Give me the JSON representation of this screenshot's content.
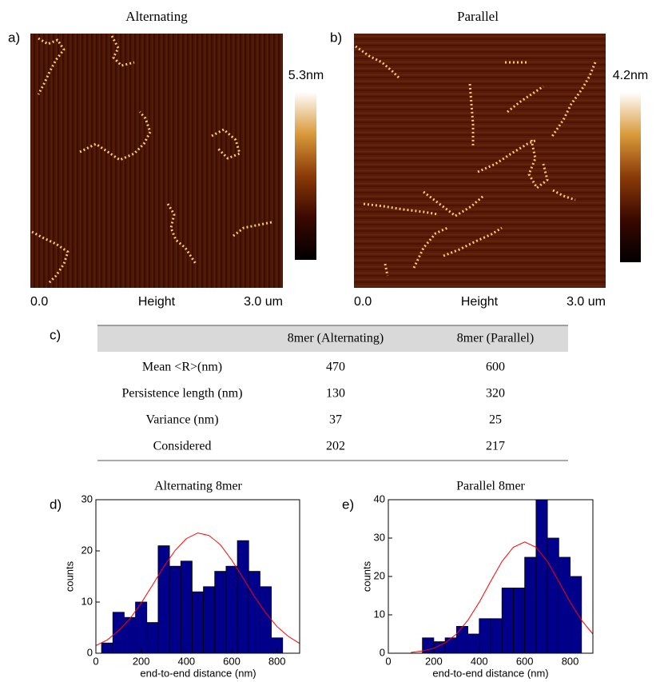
{
  "panels": {
    "a": {
      "label": "a)",
      "title": "Alternating",
      "scale_label": "5.3nm",
      "x_start": "0.0",
      "x_mid": "Height",
      "x_end": "3.0 um"
    },
    "b": {
      "label": "b)",
      "title": "Parallel",
      "scale_label": "4.2nm",
      "x_start": "0.0",
      "x_mid": "Height",
      "x_end": "3.0 um"
    },
    "c": {
      "label": "c)"
    },
    "d": {
      "label": "d)"
    },
    "e": {
      "label": "e)"
    }
  },
  "table": {
    "headers": [
      "8mer (Alternating)",
      "8mer (Parallel)"
    ],
    "rows": [
      [
        "Mean <R>(nm)",
        470,
        600
      ],
      [
        "Persistence length (nm)",
        130,
        320
      ],
      [
        "Variance (nm)",
        37,
        25
      ],
      [
        "Considered",
        202,
        217
      ]
    ]
  },
  "chart_data": [
    {
      "type": "histogram",
      "title": "Alternating 8mer",
      "xlabel": "end-to-end distance (nm)",
      "ylabel": "counts",
      "bins": [
        25,
        75,
        125,
        175,
        225,
        275,
        325,
        375,
        425,
        475,
        525,
        575,
        625,
        675,
        725,
        775,
        825
      ],
      "counts": [
        2,
        8,
        7,
        10,
        6,
        21,
        17,
        18,
        12,
        13,
        16,
        17,
        22,
        16,
        13,
        3
      ],
      "color": "#00008b",
      "xlim": [
        0,
        900
      ],
      "xticks": [
        0,
        200,
        400,
        600,
        800
      ],
      "ylim": [
        0,
        30
      ],
      "yticks": [
        0,
        10,
        20,
        30
      ],
      "fit": {
        "color": "#ff0000",
        "x": [
          0,
          50,
          100,
          150,
          200,
          250,
          300,
          350,
          400,
          450,
          500,
          550,
          600,
          650,
          700,
          750,
          800,
          850,
          900
        ],
        "values": [
          1.5,
          2.6,
          4.4,
          6.7,
          9.8,
          13.3,
          16.9,
          20.1,
          22.4,
          23.5,
          23.0,
          21.2,
          18.2,
          14.7,
          11.1,
          7.9,
          5.2,
          3.3,
          1.9
        ]
      }
    },
    {
      "type": "histogram",
      "title": "Parallel 8mer",
      "xlabel": "end-to-end distance (nm)",
      "ylabel": "counts",
      "bins": [
        150,
        200,
        250,
        300,
        350,
        400,
        450,
        500,
        550,
        600,
        650,
        700,
        750,
        800,
        850
      ],
      "counts": [
        4,
        3,
        4,
        7,
        5,
        9,
        9,
        17,
        17,
        25,
        40,
        30,
        25,
        20
      ],
      "color": "#00008b",
      "xlim": [
        0,
        900
      ],
      "xticks": [
        0,
        200,
        400,
        600,
        800
      ],
      "ylim": [
        0,
        40
      ],
      "yticks": [
        0,
        10,
        20,
        30,
        40
      ],
      "fit": {
        "color": "#ff0000",
        "x": [
          100,
          150,
          200,
          250,
          300,
          350,
          400,
          450,
          500,
          550,
          600,
          650,
          700,
          750,
          800,
          850,
          900
        ],
        "values": [
          0.2,
          0.6,
          1.3,
          2.7,
          5.0,
          8.6,
          13.3,
          18.7,
          23.9,
          27.6,
          29,
          27.6,
          23.9,
          18.7,
          13.3,
          8.6,
          5.0
        ]
      }
    }
  ]
}
